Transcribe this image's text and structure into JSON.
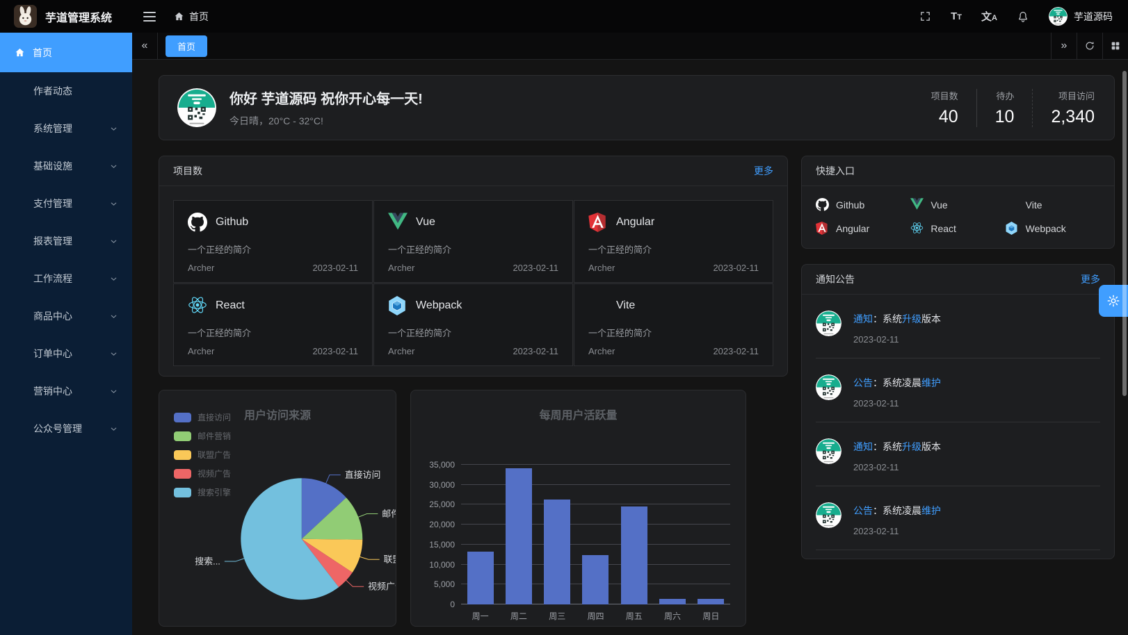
{
  "app": {
    "title": "芋道管理系统",
    "accent_color": "#409eff",
    "username": "芋道源码"
  },
  "header": {
    "breadcrumb": "首页",
    "font_icon": {
      "big": "T",
      "small": "T"
    },
    "locale_icon": {
      "big": "文",
      "small": "A"
    }
  },
  "tabs": {
    "collapse_glyph": "«",
    "expand_glyph": "»",
    "items": [
      {
        "label": "首页",
        "active": true
      }
    ]
  },
  "sidebar": {
    "active": {
      "label": "首页",
      "icon": "home-icon"
    },
    "items": [
      {
        "label": "作者动态",
        "expandable": false
      },
      {
        "label": "系统管理",
        "expandable": true
      },
      {
        "label": "基础设施",
        "expandable": true
      },
      {
        "label": "支付管理",
        "expandable": true
      },
      {
        "label": "报表管理",
        "expandable": true
      },
      {
        "label": "工作流程",
        "expandable": true
      },
      {
        "label": "商品中心",
        "expandable": true
      },
      {
        "label": "订单中心",
        "expandable": true
      },
      {
        "label": "营销中心",
        "expandable": true
      },
      {
        "label": "公众号管理",
        "expandable": true
      }
    ]
  },
  "greeting": {
    "title": "你好 芋道源码 祝你开心每一天!",
    "subtitle": "今日晴，20°C - 32°C!",
    "stats": [
      {
        "label": "项目数",
        "value": "40"
      },
      {
        "label": "待办",
        "value": "10"
      },
      {
        "label": "项目访问",
        "value": "2,340"
      }
    ]
  },
  "projects": {
    "header": "项目数",
    "more": "更多",
    "items": [
      {
        "name": "Github",
        "icon": "github-icon",
        "desc": "一个正经的简介",
        "author": "Archer",
        "date": "2023-02-11"
      },
      {
        "name": "Vue",
        "icon": "vue-icon",
        "desc": "一个正经的简介",
        "author": "Archer",
        "date": "2023-02-11"
      },
      {
        "name": "Angular",
        "icon": "angular-icon",
        "desc": "一个正经的简介",
        "author": "Archer",
        "date": "2023-02-11"
      },
      {
        "name": "React",
        "icon": "react-icon",
        "desc": "一个正经的简介",
        "author": "Archer",
        "date": "2023-02-11"
      },
      {
        "name": "Webpack",
        "icon": "webpack-icon",
        "desc": "一个正经的简介",
        "author": "Archer",
        "date": "2023-02-11"
      },
      {
        "name": "Vite",
        "icon": "vite-icon",
        "desc": "一个正经的简介",
        "author": "Archer",
        "date": "2023-02-11"
      }
    ]
  },
  "quick": {
    "header": "快捷入口",
    "items": [
      {
        "name": "Github",
        "icon": "github-icon"
      },
      {
        "name": "Vue",
        "icon": "vue-icon"
      },
      {
        "name": "Vite",
        "icon": "vite-icon"
      },
      {
        "name": "Angular",
        "icon": "angular-icon"
      },
      {
        "name": "React",
        "icon": "react-icon"
      },
      {
        "name": "Webpack",
        "icon": "webpack-icon"
      }
    ]
  },
  "notices": {
    "header": "通知公告",
    "more": "更多",
    "items": [
      {
        "tag": "通知",
        "body": "：系统",
        "highlight": "升级",
        "tail": "版本",
        "date": "2023-02-11"
      },
      {
        "tag": "公告",
        "body": "：系统凌晨",
        "highlight": "维护",
        "tail": "",
        "date": "2023-02-11"
      },
      {
        "tag": "通知",
        "body": "：系统",
        "highlight": "升级",
        "tail": "版本",
        "date": "2023-02-11"
      },
      {
        "tag": "公告",
        "body": "：系统凌晨",
        "highlight": "维护",
        "tail": "",
        "date": "2023-02-11"
      }
    ]
  },
  "chart_data": [
    {
      "type": "pie",
      "title": "用户访问来源",
      "legend_position": "left",
      "legend": [
        "直接访问",
        "邮件营销",
        "联盟广告",
        "视频广告",
        "搜索引擎"
      ],
      "series": [
        {
          "name": "直接访问",
          "value": 335,
          "color": "#5470c6",
          "label": "直接访问"
        },
        {
          "name": "邮件营销",
          "value": 310,
          "color": "#91cc75",
          "label": "邮件..."
        },
        {
          "name": "联盟广告",
          "value": 234,
          "color": "#fac858",
          "label": "联盟..."
        },
        {
          "name": "视频广告",
          "value": 135,
          "color": "#ee6666",
          "label": "视频广告"
        },
        {
          "name": "搜索引擎",
          "value": 1548,
          "color": "#73c0de",
          "label": "搜索..."
        }
      ]
    },
    {
      "type": "bar",
      "title": "每周用户活跃量",
      "categories": [
        "周一",
        "周二",
        "周三",
        "周四",
        "周五",
        "周六",
        "周日"
      ],
      "values": [
        13300,
        34200,
        26300,
        12300,
        24600,
        1400,
        1400
      ],
      "bar_color": "#5470c6",
      "ylim": [
        0,
        35000
      ],
      "y_ticks": [
        "0",
        "5,000",
        "10,000",
        "15,000",
        "20,000",
        "25,000",
        "30,000",
        "35,000"
      ],
      "grid": true
    }
  ]
}
